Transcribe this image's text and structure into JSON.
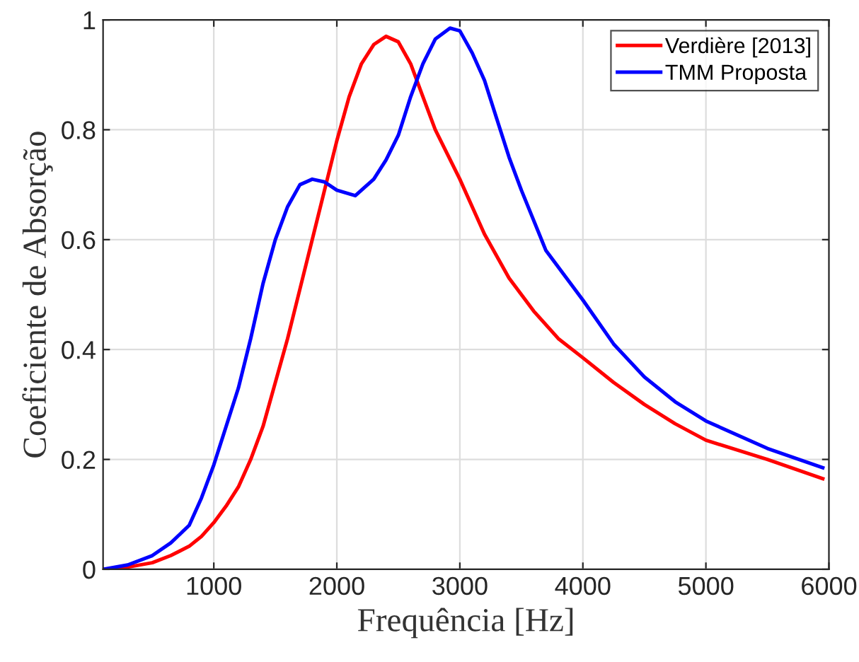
{
  "chart_data": {
    "type": "line",
    "xlabel": "Frequência [Hz]",
    "ylabel": "Coeficiente de Absorção",
    "x": [
      100,
      300,
      500,
      650,
      800,
      900,
      1000,
      1100,
      1200,
      1300,
      1400,
      1500,
      1600,
      1700,
      1800,
      1900,
      2000,
      2100,
      2200,
      2300,
      2400,
      2500,
      2600,
      2700,
      2800,
      2900,
      3000,
      3200,
      3400,
      3600,
      3800,
      4000,
      4250,
      4500,
      4750,
      5000,
      5500,
      5950
    ],
    "series": [
      {
        "name": "Verdière [2013]",
        "color": "#ff0000",
        "values": [
          0.0,
          0.004,
          0.012,
          0.025,
          0.042,
          0.06,
          0.085,
          0.115,
          0.15,
          0.2,
          0.26,
          0.34,
          0.42,
          0.51,
          0.6,
          0.69,
          0.78,
          0.86,
          0.92,
          0.955,
          0.97,
          0.96,
          0.92,
          0.86,
          0.8,
          0.755,
          0.71,
          0.61,
          0.53,
          0.47,
          0.42,
          0.385,
          0.34,
          0.3,
          0.265,
          0.235,
          0.2,
          0.165
        ]
      },
      {
        "name": "TMM Proposta",
        "color": "#0000ff",
        "x": [
          100,
          300,
          500,
          650,
          800,
          900,
          1000,
          1100,
          1200,
          1300,
          1400,
          1500,
          1600,
          1700,
          1800,
          1900,
          2000,
          2150,
          2300,
          2400,
          2500,
          2600,
          2700,
          2800,
          2920,
          3000,
          3100,
          3200,
          3300,
          3400,
          3500,
          3700,
          4000,
          4250,
          4500,
          4750,
          5000,
          5500,
          5950
        ],
        "values": [
          0.0,
          0.008,
          0.025,
          0.048,
          0.08,
          0.13,
          0.19,
          0.26,
          0.33,
          0.42,
          0.52,
          0.6,
          0.66,
          0.7,
          0.71,
          0.705,
          0.69,
          0.68,
          0.71,
          0.745,
          0.79,
          0.86,
          0.92,
          0.965,
          0.985,
          0.98,
          0.94,
          0.89,
          0.82,
          0.75,
          0.69,
          0.58,
          0.49,
          0.41,
          0.35,
          0.305,
          0.27,
          0.22,
          0.185
        ]
      }
    ],
    "xlim": [
      100,
      6000
    ],
    "ylim": [
      0,
      1
    ],
    "xticks": [
      1000,
      2000,
      3000,
      4000,
      5000,
      6000
    ],
    "yticks": [
      0,
      0.2,
      0.4,
      0.6,
      0.8,
      1
    ],
    "grid": true,
    "legend": "top right",
    "line_style": "solid",
    "marker": "none"
  }
}
